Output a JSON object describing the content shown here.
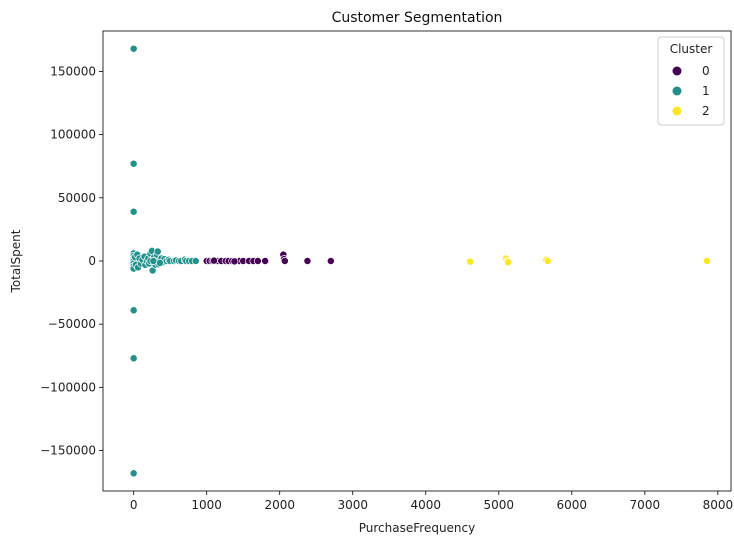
{
  "chart_data": {
    "type": "scatter",
    "title": "Customer Segmentation",
    "xlabel": "PurchaseFrequency",
    "ylabel": "TotalSpent",
    "xlim": [
      -420,
      8180
    ],
    "ylim": [
      -182000,
      182000
    ],
    "xticks": [
      0,
      1000,
      2000,
      3000,
      4000,
      5000,
      6000,
      7000,
      8000
    ],
    "xtick_labels": [
      "0",
      "1000",
      "2000",
      "3000",
      "4000",
      "5000",
      "6000",
      "7000",
      "8000"
    ],
    "yticks": [
      150000,
      100000,
      50000,
      0,
      -50000,
      -100000,
      -150000
    ],
    "ytick_labels": [
      "150000",
      "100000",
      "50000",
      "0",
      "−50000",
      "−100000",
      "−150000"
    ],
    "grid": false,
    "legend": {
      "title": "Cluster",
      "position": "top-right"
    },
    "series": [
      {
        "name": "0",
        "color": "#440154",
        "points": [
          [
            1000,
            0
          ],
          [
            1040,
            0
          ],
          [
            1080,
            0
          ],
          [
            1120,
            0
          ],
          [
            1150,
            0
          ],
          [
            1200,
            0
          ],
          [
            1260,
            0
          ],
          [
            1300,
            0
          ],
          [
            1350,
            0
          ],
          [
            1400,
            0
          ],
          [
            1450,
            0
          ],
          [
            1500,
            0
          ],
          [
            1580,
            0
          ],
          [
            1640,
            0
          ],
          [
            1700,
            0
          ],
          [
            1800,
            0
          ],
          [
            2050,
            5000
          ],
          [
            2060,
            1500
          ],
          [
            2070,
            0
          ],
          [
            2380,
            0
          ],
          [
            2700,
            0
          ],
          [
            1100,
            300
          ],
          [
            1380,
            -300
          ]
        ]
      },
      {
        "name": "1",
        "color": "#21918c",
        "points": [
          [
            0,
            168000
          ],
          [
            0,
            77000
          ],
          [
            0,
            39000
          ],
          [
            0,
            -39000
          ],
          [
            0,
            -77000
          ],
          [
            0,
            -168000
          ],
          [
            0,
            6000
          ],
          [
            0,
            4000
          ],
          [
            0,
            2000
          ],
          [
            0,
            0
          ],
          [
            0,
            -2000
          ],
          [
            0,
            -4000
          ],
          [
            0,
            -6000
          ],
          [
            20,
            3000
          ],
          [
            30,
            -3000
          ],
          [
            50,
            5000
          ],
          [
            60,
            -5000
          ],
          [
            80,
            2000
          ],
          [
            100,
            -2000
          ],
          [
            120,
            1000
          ],
          [
            150,
            3500
          ],
          [
            160,
            -3000
          ],
          [
            180,
            0
          ],
          [
            200,
            2000
          ],
          [
            210,
            -2000
          ],
          [
            230,
            6000
          ],
          [
            250,
            8000
          ],
          [
            260,
            -7500
          ],
          [
            280,
            3000
          ],
          [
            300,
            -3000
          ],
          [
            320,
            5000
          ],
          [
            330,
            7500
          ],
          [
            340,
            -2500
          ],
          [
            350,
            0
          ],
          [
            380,
            2000
          ],
          [
            400,
            -1000
          ],
          [
            420,
            1500
          ],
          [
            450,
            0
          ],
          [
            480,
            1000
          ],
          [
            500,
            0
          ],
          [
            550,
            0
          ],
          [
            580,
            500
          ],
          [
            620,
            0
          ],
          [
            650,
            0
          ],
          [
            700,
            1000
          ],
          [
            720,
            0
          ],
          [
            760,
            0
          ],
          [
            800,
            0
          ],
          [
            850,
            0
          ],
          [
            230,
            0
          ],
          [
            270,
            0
          ],
          [
            360,
            -1500
          ]
        ]
      },
      {
        "name": "2",
        "color": "#fde725",
        "points": [
          [
            4600,
            0
          ],
          [
            4610,
            -500
          ],
          [
            5100,
            2000
          ],
          [
            5120,
            0
          ],
          [
            5130,
            -1000
          ],
          [
            5650,
            1000
          ],
          [
            5670,
            0
          ],
          [
            7850,
            0
          ]
        ]
      }
    ]
  }
}
